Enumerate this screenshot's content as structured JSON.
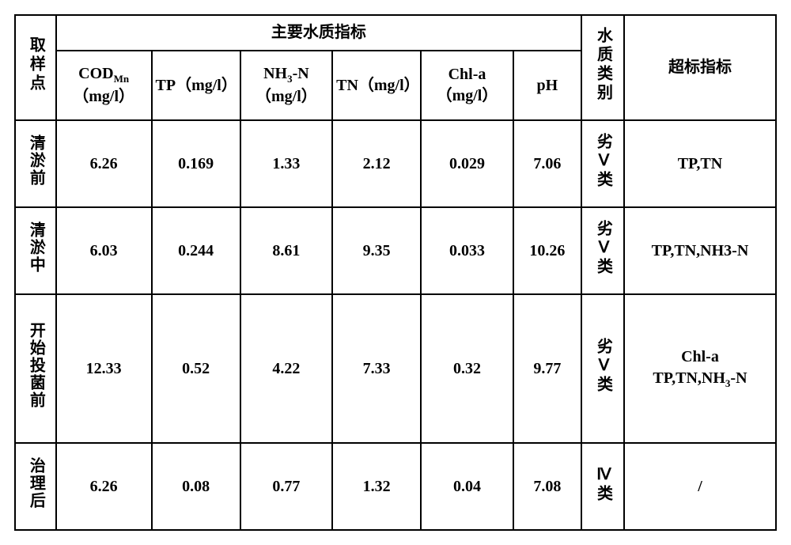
{
  "table": {
    "header": {
      "sample_point": "取样点",
      "group_main": "主要水质指标",
      "water_category": "水质类别",
      "over_limit": "超标指标",
      "cod_mn_html": "COD<sub>Mn</sub>（mg/l）",
      "tp_html": "TP（mg/l）",
      "nh3_html": "NH<sub>3</sub>-N（mg/l）",
      "tn_html": "TN（mg/l）",
      "chla_html": "Chl-a（mg/l）",
      "ph": "pH"
    },
    "rows": [
      {
        "sample": "清淤前",
        "cod": "6.26",
        "tp": "0.169",
        "nh3": "1.33",
        "tn": "2.12",
        "chla": "0.029",
        "ph": "7.06",
        "cat": "劣Ⅴ类",
        "over": "TP,TN"
      },
      {
        "sample": "清淤中",
        "cod": "6.03",
        "tp": "0.244",
        "nh3": "8.61",
        "tn": "9.35",
        "chla": "0.033",
        "ph": "10.26",
        "cat": "劣Ⅴ类",
        "over": "TP,TN,NH3-N"
      },
      {
        "sample": "开始投菌前",
        "cod": "12.33",
        "tp": "0.52",
        "nh3": "4.22",
        "tn": "7.33",
        "chla": "0.32",
        "ph": "9.77",
        "cat": "劣Ⅴ类",
        "over_html": "Chl-a<br>TP,TN,NH<sub>3</sub>-N"
      },
      {
        "sample": "治理后",
        "cod": "6.26",
        "tp": "0.08",
        "nh3": "0.77",
        "tn": "1.32",
        "chla": "0.04",
        "ph": "7.08",
        "cat": "Ⅳ类",
        "over": "/"
      }
    ],
    "colors": {
      "border": "#000000",
      "background": "#ffffff",
      "text": "#000000"
    },
    "font": {
      "family": "SimSun",
      "size_pt": 15,
      "weight": "bold"
    }
  }
}
